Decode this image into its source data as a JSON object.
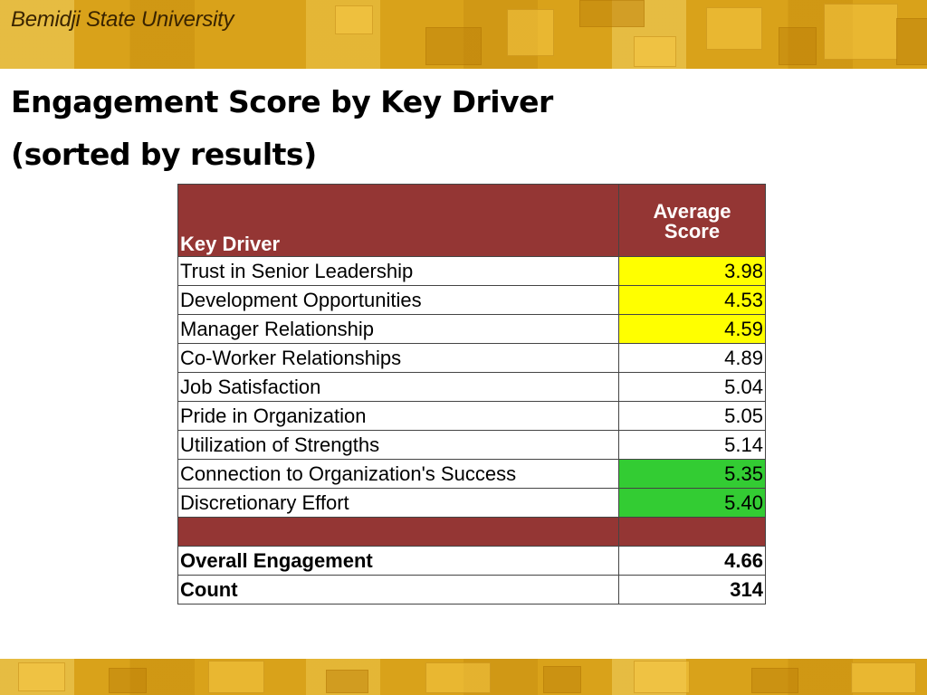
{
  "header": {
    "brand": "Bemidji State University"
  },
  "title": {
    "line1": "Engagement Score by Key Driver",
    "line2": "(sorted by results)"
  },
  "table": {
    "col1_header": "Key Driver",
    "col2_header_line1": "Average",
    "col2_header_line2": "Score",
    "rows": [
      {
        "driver": "Trust in Senior Leadership",
        "score": "3.98",
        "highlight": "#ffff00"
      },
      {
        "driver": "Development Opportunities",
        "score": "4.53",
        "highlight": "#ffff00"
      },
      {
        "driver": "Manager Relationship",
        "score": "4.59",
        "highlight": "#ffff00"
      },
      {
        "driver": "Co-Worker Relationships",
        "score": "4.89",
        "highlight": ""
      },
      {
        "driver": "Job Satisfaction",
        "score": "5.04",
        "highlight": ""
      },
      {
        "driver": "Pride in Organization",
        "score": "5.05",
        "highlight": ""
      },
      {
        "driver": "Utilization of Strengths",
        "score": "5.14",
        "highlight": ""
      },
      {
        "driver": "Connection to Organization's Success",
        "score": "5.35",
        "highlight": "#33cc33"
      },
      {
        "driver": "Discretionary Effort",
        "score": "5.40",
        "highlight": "#33cc33"
      }
    ],
    "summary": [
      {
        "label": "Overall Engagement",
        "value": "4.66"
      },
      {
        "label": "Count",
        "value": "314"
      }
    ],
    "header_color": "#943634"
  }
}
